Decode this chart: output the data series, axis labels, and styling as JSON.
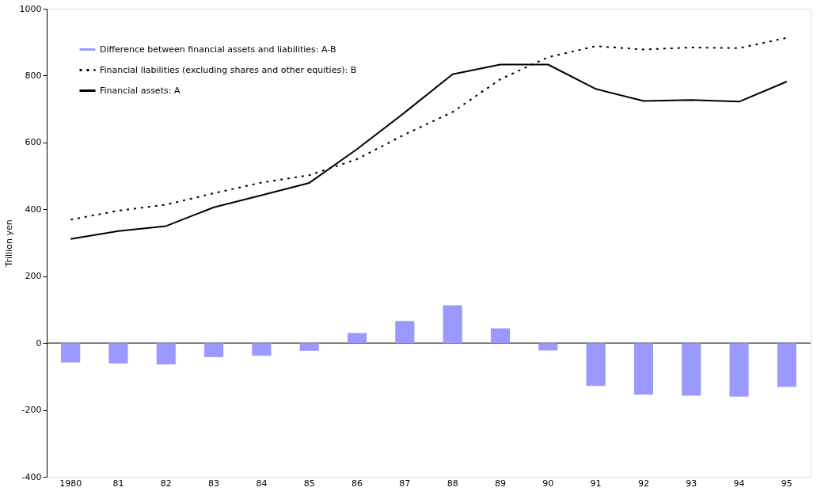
{
  "chart_data": {
    "type": "bar",
    "ylabel": "Trillion yen",
    "categories": [
      "1980",
      "81",
      "82",
      "83",
      "84",
      "85",
      "86",
      "87",
      "88",
      "89",
      "90",
      "91",
      "92",
      "93",
      "94",
      "95"
    ],
    "ylim": [
      -400,
      1000
    ],
    "yticks": [
      -400,
      -200,
      0,
      200,
      400,
      600,
      800,
      {
        "value": 1000,
        "label": "1000"
      }
    ],
    "legend": "top left",
    "series": [
      {
        "name": "Difference between financial assets and liabilities: A-B",
        "color": "#9999ff",
        "values": [
          -58,
          -61,
          -64,
          -42,
          -38,
          -23,
          30,
          66,
          113,
          44,
          -22,
          -128,
          -154,
          -157,
          -160,
          -131
        ]
      },
      {
        "name": "Financial liabilities (excluding shares and other equities): B",
        "type": "line",
        "line_style": "dotted",
        "color": "#000000",
        "values": [
          369,
          396,
          414,
          448,
          480,
          502,
          550,
          624,
          691,
          789,
          855,
          888,
          878,
          884,
          882,
          913
        ]
      },
      {
        "name": "Financial assets: A",
        "type": "line",
        "line_style": "solid",
        "color": "#000000",
        "values": [
          311,
          335,
          350,
          406,
          442,
          479,
          580,
          690,
          804,
          833,
          833,
          760,
          724,
          727,
          722,
          782
        ]
      }
    ]
  }
}
